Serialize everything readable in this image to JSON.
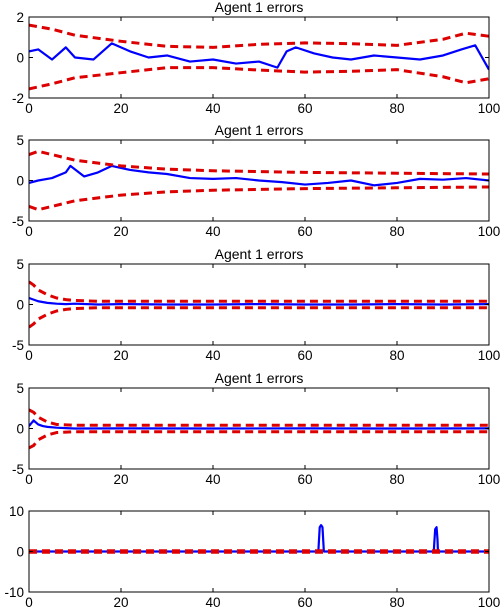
{
  "chart_data": [
    {
      "type": "line",
      "title": "Agent 1 errors",
      "xlim": [
        0,
        100
      ],
      "ylim": [
        -2,
        2
      ],
      "xticks": [
        "0",
        "20",
        "40",
        "60",
        "80",
        "100"
      ],
      "yticks": [
        "-2",
        "0",
        "2"
      ],
      "series": [
        {
          "role": "error",
          "color": "#0000ff",
          "style": "solid",
          "x": [
            0,
            2,
            5,
            8,
            10,
            14,
            18,
            22,
            26,
            30,
            35,
            40,
            45,
            50,
            54,
            56,
            58,
            62,
            66,
            70,
            75,
            80,
            85,
            90,
            94,
            97,
            100
          ],
          "y": [
            0.3,
            0.4,
            -0.1,
            0.5,
            0,
            -0.1,
            0.7,
            0.3,
            0,
            0.1,
            -0.2,
            -0.1,
            -0.3,
            -0.2,
            -0.5,
            0.3,
            0.5,
            0.2,
            0,
            -0.1,
            0.1,
            0,
            -0.1,
            0.1,
            0.4,
            0.6,
            -0.6
          ]
        },
        {
          "role": "upper-bound",
          "color": "#dd0000",
          "style": "dashed",
          "x": [
            0,
            5,
            10,
            20,
            30,
            40,
            50,
            60,
            70,
            80,
            90,
            95,
            100
          ],
          "y": [
            1.6,
            1.4,
            1.1,
            0.8,
            0.55,
            0.5,
            0.65,
            0.72,
            0.68,
            0.6,
            0.9,
            1.2,
            1.05
          ]
        },
        {
          "role": "lower-bound",
          "color": "#dd0000",
          "style": "dashed",
          "x": [
            0,
            5,
            10,
            20,
            30,
            40,
            50,
            60,
            70,
            80,
            90,
            95,
            100
          ],
          "y": [
            -1.55,
            -1.3,
            -1,
            -0.75,
            -0.5,
            -0.5,
            -0.62,
            -0.72,
            -0.68,
            -0.6,
            -0.95,
            -1.25,
            -1.05
          ]
        }
      ]
    },
    {
      "type": "line",
      "title": "Agent 1 errors",
      "xlim": [
        0,
        100
      ],
      "ylim": [
        -5,
        5
      ],
      "xticks": [
        "0",
        "20",
        "40",
        "60",
        "80",
        "100"
      ],
      "yticks": [
        "-5",
        "0",
        "5"
      ],
      "series": [
        {
          "role": "error",
          "color": "#0000ff",
          "style": "solid",
          "x": [
            0,
            2,
            5,
            8,
            9,
            12,
            15,
            18,
            22,
            26,
            30,
            35,
            40,
            45,
            50,
            55,
            60,
            65,
            70,
            75,
            80,
            85,
            90,
            95,
            100
          ],
          "y": [
            -0.3,
            0,
            0.3,
            1,
            1.8,
            0.5,
            1,
            1.8,
            1.3,
            1,
            0.8,
            0.3,
            0.2,
            0.3,
            0,
            -0.2,
            -0.5,
            -0.3,
            0,
            -0.6,
            -0.3,
            0.2,
            0.1,
            0.3,
            0
          ]
        },
        {
          "role": "upper-bound",
          "color": "#dd0000",
          "style": "dashed",
          "x": [
            0,
            2,
            5,
            10,
            20,
            30,
            40,
            50,
            60,
            70,
            80,
            90,
            100
          ],
          "y": [
            3.2,
            3.6,
            3.2,
            2.5,
            1.8,
            1.4,
            1.2,
            1.1,
            1,
            0.95,
            0.9,
            0.85,
            0.8
          ]
        },
        {
          "role": "lower-bound",
          "color": "#dd0000",
          "style": "dashed",
          "x": [
            0,
            2,
            5,
            10,
            20,
            30,
            40,
            50,
            60,
            70,
            80,
            90,
            100
          ],
          "y": [
            -3.2,
            -3.6,
            -3.2,
            -2.5,
            -1.8,
            -1.4,
            -1.2,
            -1.1,
            -1,
            -0.95,
            -0.9,
            -0.85,
            -0.8
          ]
        }
      ]
    },
    {
      "type": "line",
      "title": "Agent 1 errors",
      "xlim": [
        0,
        100
      ],
      "ylim": [
        -5,
        5
      ],
      "xticks": [
        "0",
        "20",
        "40",
        "60",
        "80",
        "100"
      ],
      "yticks": [
        "-5",
        "0",
        "5"
      ],
      "series": [
        {
          "role": "error",
          "color": "#0000ff",
          "style": "solid",
          "x": [
            0,
            1,
            2,
            4,
            6,
            8,
            10,
            15,
            20,
            30,
            40,
            50,
            60,
            70,
            80,
            90,
            100
          ],
          "y": [
            0.8,
            0.6,
            0.4,
            0.2,
            0.1,
            0.05,
            0.1,
            0,
            0.05,
            0,
            0,
            0.05,
            0,
            0,
            0.05,
            0,
            0.05
          ]
        },
        {
          "role": "upper-bound",
          "color": "#dd0000",
          "style": "dashed",
          "x": [
            0,
            1,
            2,
            4,
            6,
            8,
            10,
            15,
            20,
            40,
            60,
            80,
            100
          ],
          "y": [
            2.8,
            2.4,
            1.8,
            1.2,
            0.8,
            0.6,
            0.5,
            0.4,
            0.4,
            0.4,
            0.4,
            0.4,
            0.4
          ]
        },
        {
          "role": "lower-bound",
          "color": "#dd0000",
          "style": "dashed",
          "x": [
            0,
            1,
            2,
            4,
            6,
            8,
            10,
            15,
            20,
            40,
            60,
            80,
            100
          ],
          "y": [
            -2.8,
            -2.4,
            -1.8,
            -1.2,
            -0.8,
            -0.6,
            -0.5,
            -0.4,
            -0.4,
            -0.4,
            -0.4,
            -0.4,
            -0.4
          ]
        }
      ]
    },
    {
      "type": "line",
      "title": "Agent 1 errors",
      "xlim": [
        0,
        100
      ],
      "ylim": [
        -5,
        5
      ],
      "xticks": [
        "0",
        "20",
        "40",
        "60",
        "80",
        "100"
      ],
      "yticks": [
        "-5",
        "0",
        "5"
      ],
      "series": [
        {
          "role": "error",
          "color": "#0000ff",
          "style": "solid",
          "x": [
            0,
            1,
            2,
            3,
            4,
            6,
            8,
            10,
            20,
            40,
            60,
            80,
            100
          ],
          "y": [
            0.3,
            1,
            0.5,
            0.3,
            0.2,
            0.1,
            0.05,
            0,
            0.02,
            0,
            0.02,
            0,
            0.02
          ]
        },
        {
          "role": "upper-bound",
          "color": "#dd0000",
          "style": "dashed",
          "x": [
            0,
            1,
            2,
            4,
            6,
            8,
            10,
            20,
            40,
            60,
            80,
            100
          ],
          "y": [
            2.3,
            2,
            1.4,
            0.8,
            0.5,
            0.45,
            0.4,
            0.4,
            0.4,
            0.4,
            0.4,
            0.4
          ]
        },
        {
          "role": "lower-bound",
          "color": "#dd0000",
          "style": "dashed",
          "x": [
            0,
            1,
            2,
            4,
            6,
            8,
            10,
            20,
            40,
            60,
            80,
            100
          ],
          "y": [
            -2.4,
            -2.1,
            -1.4,
            -0.8,
            -0.5,
            -0.45,
            -0.4,
            -0.4,
            -0.4,
            -0.4,
            -0.4,
            -0.4
          ]
        }
      ]
    },
    {
      "type": "line",
      "title": "",
      "xlim": [
        0,
        100
      ],
      "ylim": [
        -10,
        10
      ],
      "xticks": [
        "0",
        "20",
        "40",
        "60",
        "80",
        "100"
      ],
      "yticks": [
        "-10",
        "0",
        "10"
      ],
      "series": [
        {
          "role": "error",
          "color": "#0000ff",
          "style": "solid",
          "x": [
            0,
            62.9,
            63,
            63.2,
            63.5,
            63.8,
            64,
            64.1,
            88,
            88.1,
            88.3,
            88.6,
            88.8,
            88.9,
            100
          ],
          "y": [
            0,
            0,
            2,
            6,
            6.5,
            6,
            2,
            0,
            0,
            2,
            5.5,
            6,
            3,
            0,
            0
          ]
        },
        {
          "role": "upper-bound",
          "color": "#dd0000",
          "style": "dashed",
          "x": [
            0,
            100
          ],
          "y": [
            0.2,
            0.2
          ]
        },
        {
          "role": "lower-bound",
          "color": "#dd0000",
          "style": "dashed",
          "x": [
            0,
            100
          ],
          "y": [
            -0.2,
            -0.2
          ]
        }
      ]
    }
  ]
}
